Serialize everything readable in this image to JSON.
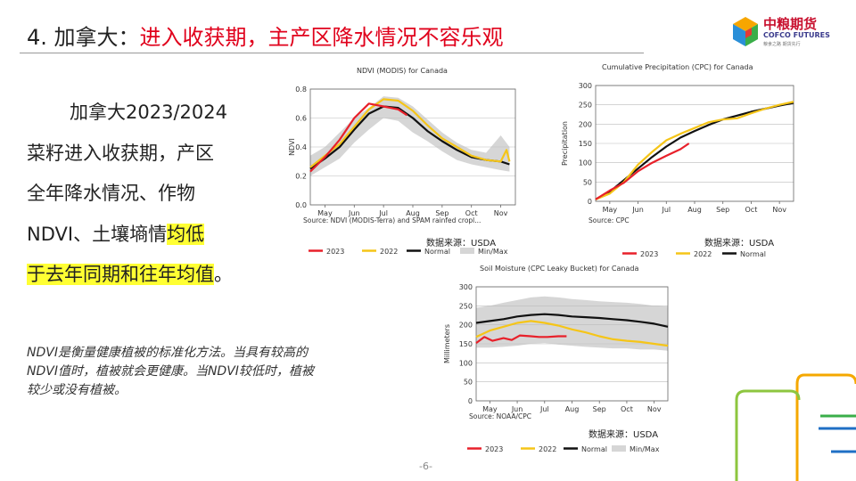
{
  "title": {
    "number": "4.",
    "country": "加拿大：",
    "headline": "进入收获期，主产区降水情况不容乐观"
  },
  "logo": {
    "cn": "中粮期货",
    "en": "COFCO FUTURES",
    "tagline": "粮食之路  期货先行"
  },
  "body": {
    "lines": [
      "加拿大2023/2024",
      "菜籽进入收获期，产区",
      "全年降水情况、作物",
      "NDVI、土壤墒情"
    ],
    "highlight_1": "均低",
    "highlight_2": "于去年同期和往年均值",
    "tail": "。"
  },
  "note": {
    "lines": [
      "NDVI是衡量健康植被的标准化方法。当具有较高的",
      "NDVI值时，植被就会更健康。当NDVI较低时，植被",
      "较少或没有植被。"
    ]
  },
  "source_label": "数据来源：USDA",
  "page_number": "-6-",
  "colors": {
    "y2023": "#e8202a",
    "y2022": "#f5c518",
    "normal": "#111111",
    "minmax": "#d6d6d6",
    "accent_red": "#e0001b",
    "highlight": "#ffff33"
  },
  "legend_labels": {
    "y2023": "2023",
    "y2022": "2022",
    "normal": "Normal",
    "minmax": "Min/Max"
  },
  "chart_data": [
    {
      "id": "ndvi",
      "type": "line",
      "title": "NDVI (MODIS) for Canada",
      "ylabel": "NDVI",
      "xlabel": "",
      "source": "Source: NDVI (MODIS-Terra) and SPAM rainfed cropl...",
      "xlim": [
        0,
        7
      ],
      "ylim": [
        0.0,
        0.8
      ],
      "yticks": [
        0.0,
        0.2,
        0.4,
        0.6,
        0.8
      ],
      "ytick_labels": [
        "0.0",
        "0.2",
        "0.4",
        "0.6",
        "0.8"
      ],
      "xtick_positions": [
        0.5,
        1.5,
        2.5,
        3.5,
        4.5,
        5.5,
        6.5
      ],
      "xtick_labels": [
        "May",
        "Jun",
        "Jul",
        "Aug",
        "Sep",
        "Oct",
        "Nov"
      ],
      "band": {
        "x": [
          0,
          0.5,
          1,
          1.5,
          2,
          2.5,
          3,
          3.5,
          4,
          4.5,
          5,
          5.5,
          6,
          6.5,
          6.8
        ],
        "min": [
          0.2,
          0.26,
          0.32,
          0.43,
          0.52,
          0.6,
          0.58,
          0.5,
          0.44,
          0.37,
          0.31,
          0.28,
          0.26,
          0.24,
          0.23
        ],
        "max": [
          0.34,
          0.4,
          0.5,
          0.6,
          0.67,
          0.75,
          0.74,
          0.68,
          0.59,
          0.5,
          0.43,
          0.38,
          0.36,
          0.48,
          0.4
        ]
      },
      "series": [
        {
          "name": "Normal",
          "key": "normal",
          "x": [
            0,
            0.5,
            1,
            1.5,
            2,
            2.5,
            3,
            3.5,
            4,
            4.5,
            5,
            5.5,
            6,
            6.5,
            6.8
          ],
          "y": [
            0.25,
            0.32,
            0.4,
            0.52,
            0.63,
            0.68,
            0.67,
            0.6,
            0.51,
            0.44,
            0.38,
            0.33,
            0.31,
            0.3,
            0.28
          ]
        },
        {
          "name": "2022",
          "key": "y2022",
          "x": [
            0,
            0.5,
            1,
            1.5,
            2,
            2.5,
            3,
            3.5,
            4,
            4.5,
            5,
            5.5,
            6,
            6.5,
            6.7,
            6.8
          ],
          "y": [
            0.26,
            0.34,
            0.42,
            0.54,
            0.66,
            0.73,
            0.72,
            0.65,
            0.55,
            0.46,
            0.4,
            0.34,
            0.31,
            0.3,
            0.38,
            0.3
          ]
        },
        {
          "name": "2023",
          "key": "y2023",
          "x": [
            0,
            0.5,
            1,
            1.5,
            2,
            2.5,
            3,
            3.3
          ],
          "y": [
            0.23,
            0.33,
            0.45,
            0.6,
            0.7,
            0.68,
            0.66,
            0.62
          ]
        }
      ]
    },
    {
      "id": "cpc",
      "type": "line",
      "title": "Cumulative Precipitation (CPC) for Canada",
      "ylabel": "Precipitation",
      "xlabel": "",
      "source": "Source: CPC",
      "xlim": [
        0,
        7
      ],
      "ylim": [
        0,
        300
      ],
      "yticks": [
        0,
        50,
        100,
        150,
        200,
        250,
        300
      ],
      "ytick_labels": [
        "0",
        "50",
        "100",
        "150",
        "200",
        "250",
        "300"
      ],
      "xtick_positions": [
        0.5,
        1.5,
        2.5,
        3.5,
        4.5,
        5.5,
        6.5
      ],
      "xtick_labels": [
        "May",
        "Jun",
        "Jul",
        "Aug",
        "Sep",
        "Oct",
        "Nov"
      ],
      "series": [
        {
          "name": "Normal",
          "key": "normal",
          "x": [
            0,
            0.5,
            1,
            1.5,
            2,
            2.5,
            3,
            3.5,
            4,
            4.5,
            5,
            5.5,
            6,
            6.5,
            7
          ],
          "y": [
            5,
            25,
            55,
            85,
            115,
            142,
            165,
            182,
            198,
            212,
            222,
            232,
            240,
            248,
            255
          ]
        },
        {
          "name": "2022",
          "key": "y2022",
          "x": [
            0,
            0.5,
            1,
            1.5,
            2,
            2.5,
            3,
            3.5,
            4,
            4.5,
            5,
            5.5,
            6,
            6.5,
            7
          ],
          "y": [
            5,
            20,
            50,
            95,
            128,
            158,
            175,
            190,
            205,
            212,
            215,
            228,
            240,
            250,
            258
          ]
        },
        {
          "name": "2023",
          "key": "y2023",
          "x": [
            0,
            0.5,
            1,
            1.5,
            2,
            2.5,
            3,
            3.3
          ],
          "y": [
            5,
            28,
            48,
            78,
            100,
            118,
            135,
            150
          ]
        }
      ]
    },
    {
      "id": "soil",
      "type": "line",
      "title": "Soil Moisture (CPC Leaky Bucket) for Canada",
      "ylabel": "Millimeters",
      "xlabel": "",
      "source": "Source: NOAA/CPC",
      "xlim": [
        0,
        7
      ],
      "ylim": [
        0,
        300
      ],
      "yticks": [
        0,
        50,
        100,
        150,
        200,
        250,
        300
      ],
      "ytick_labels": [
        "0",
        "50",
        "100",
        "150",
        "200",
        "250",
        "300"
      ],
      "xtick_positions": [
        0.5,
        1.5,
        2.5,
        3.5,
        4.5,
        5.5,
        6.5
      ],
      "xtick_labels": [
        "May",
        "Jun",
        "Jul",
        "Aug",
        "Sep",
        "Oct",
        "Nov"
      ],
      "band": {
        "x": [
          0,
          0.5,
          1,
          1.5,
          2,
          2.5,
          3,
          3.5,
          4,
          4.5,
          5,
          5.5,
          6,
          6.5,
          7
        ],
        "min": [
          140,
          140,
          142,
          145,
          150,
          152,
          148,
          145,
          142,
          140,
          138,
          138,
          135,
          135,
          132
        ],
        "max": [
          245,
          250,
          258,
          265,
          272,
          275,
          272,
          268,
          265,
          262,
          260,
          258,
          255,
          250,
          248
        ]
      },
      "series": [
        {
          "name": "Normal",
          "key": "normal",
          "x": [
            0,
            0.5,
            1,
            1.5,
            2,
            2.5,
            3,
            3.5,
            4,
            4.5,
            5,
            5.5,
            6,
            6.5,
            7
          ],
          "y": [
            205,
            210,
            215,
            222,
            226,
            228,
            226,
            222,
            220,
            218,
            215,
            212,
            208,
            203,
            195
          ]
        },
        {
          "name": "2022",
          "key": "y2022",
          "x": [
            0,
            0.5,
            1,
            1.5,
            2,
            2.5,
            3,
            3.5,
            4,
            4.5,
            5,
            5.5,
            6,
            6.5,
            7
          ],
          "y": [
            168,
            185,
            195,
            205,
            210,
            205,
            198,
            188,
            180,
            170,
            162,
            158,
            155,
            150,
            145
          ]
        },
        {
          "name": "2023",
          "key": "y2023",
          "x": [
            0,
            0.3,
            0.6,
            1,
            1.3,
            1.6,
            2,
            2.3,
            2.6,
            3,
            3.3
          ],
          "y": [
            152,
            168,
            158,
            165,
            160,
            172,
            170,
            168,
            168,
            170,
            170
          ]
        }
      ]
    }
  ]
}
